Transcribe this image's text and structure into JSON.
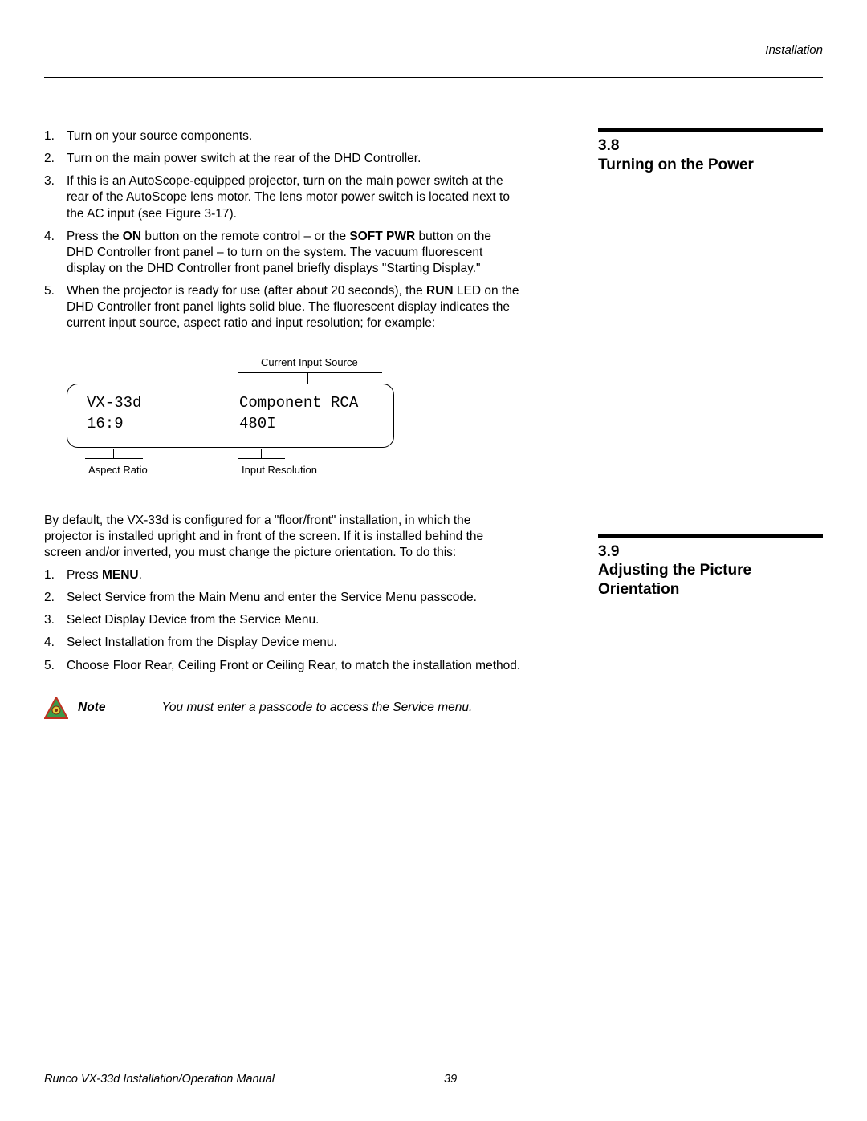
{
  "header": {
    "section": "Installation"
  },
  "section38": {
    "number": "3.8",
    "title": "Turning on the Power",
    "steps": [
      {
        "html": "Turn on your source components."
      },
      {
        "html": "Turn on the main power switch at the rear of the DHD Controller."
      },
      {
        "html": "If this is an AutoScope-equipped projector, turn on the main power switch at the rear of the AutoScope lens motor. The lens motor power switch is located next to the AC input (see Figure 3-17)."
      },
      {
        "html": "Press the <b>ON</b> button on the remote control – or the <b>SOFT PWR</b> button on the DHD Controller front panel – to turn on the system. The vacuum fluorescent display on the DHD Controller front panel briefly displays \"Starting Display.\""
      },
      {
        "html": "When the projector is ready for use (after about 20 seconds), the <b>RUN</b> LED on the DHD Controller front panel lights solid blue. The fluorescent display indicates the current input source, aspect ratio and input resolution; for example:"
      }
    ]
  },
  "display": {
    "labels": {
      "current_input_source": "Current Input Source",
      "aspect_ratio": "Aspect Ratio",
      "input_resolution": "Input Resolution"
    },
    "row1_left": "VX-33d",
    "row1_right": "Component RCA",
    "row2_left": "16:9",
    "row2_right": "480I"
  },
  "section39": {
    "number": "3.9",
    "title": "Adjusting the Picture Orientation",
    "intro": "By default, the VX-33d is configured for a \"floor/front\" installation, in which the projector is installed upright and in front of the screen. If it is installed behind the screen and/or inverted, you must change the picture orientation. To do this:",
    "steps": [
      {
        "html": "Press <b>MENU</b>."
      },
      {
        "html": "Select Service from the Main Menu and enter the Service Menu passcode."
      },
      {
        "html": "Select Display Device from the Service Menu."
      },
      {
        "html": "Select Installation from the Display Device menu."
      },
      {
        "html": "Choose Floor Rear, Ceiling Front or Ceiling Rear, to match the installation method."
      }
    ]
  },
  "note": {
    "label": "Note",
    "text": "You must enter a passcode to access the Service menu.",
    "icon_colors": {
      "border": "#d22",
      "fill": "#3a9a4a",
      "accent": "#e0d040"
    }
  },
  "footer": {
    "title": "Runco VX-33d Installation/Operation Manual",
    "page": "39"
  }
}
